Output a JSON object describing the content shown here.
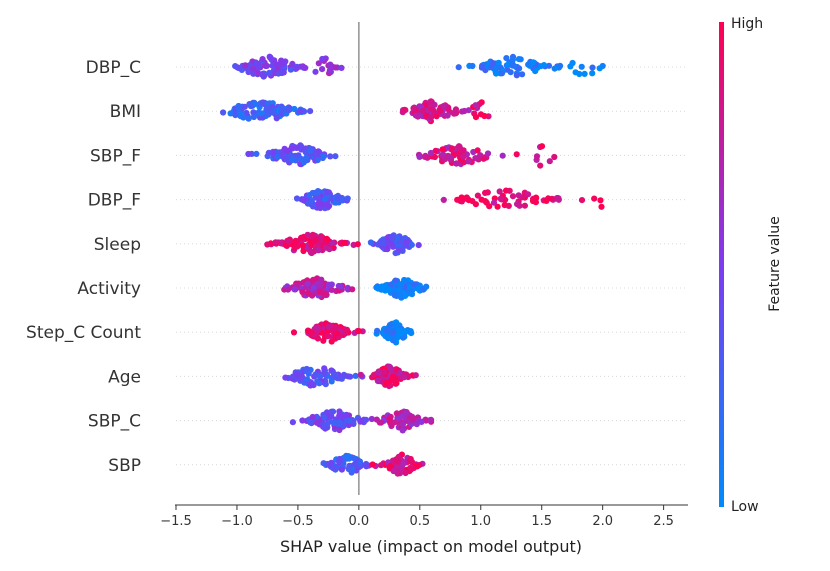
{
  "chart_data": {
    "type": "scatter",
    "subtype": "shap-beeswarm",
    "xlabel": "SHAP value (impact on model output)",
    "xlim": [
      -1.5,
      2.7
    ],
    "xticks": [
      "−1.5",
      "−1.0",
      "−0.5",
      "0.0",
      "0.5",
      "1.0",
      "1.5",
      "2.0",
      "2.5"
    ],
    "xtick_values": [
      -1.5,
      -1.0,
      -0.5,
      0.0,
      0.5,
      1.0,
      1.5,
      2.0,
      2.5
    ],
    "grid": false,
    "colorbar": {
      "title": "Feature value",
      "high_label": "High",
      "low_label": "Low",
      "high_color": "#ff0052",
      "low_color": "#008bfb",
      "placement": "right"
    },
    "features": [
      {
        "name": "DBP_C",
        "clusters": [
          {
            "center": -0.75,
            "spread": 0.28,
            "count": 90,
            "value": 0.45
          },
          {
            "center": -0.3,
            "spread": 0.12,
            "count": 15,
            "value": 0.6
          },
          {
            "center": 1.25,
            "spread": 0.3,
            "count": 70,
            "value": 0.12
          },
          {
            "center": 1.9,
            "spread": 0.25,
            "count": 12,
            "value": 0.05
          }
        ]
      },
      {
        "name": "BMI",
        "clusters": [
          {
            "center": -0.8,
            "spread": 0.32,
            "count": 95,
            "value": 0.25
          },
          {
            "center": 0.6,
            "spread": 0.22,
            "count": 80,
            "value": 0.78
          },
          {
            "center": 1.0,
            "spread": 0.12,
            "count": 10,
            "value": 0.85
          }
        ]
      },
      {
        "name": "SBP_F",
        "clusters": [
          {
            "center": -0.5,
            "spread": 0.28,
            "count": 100,
            "value": 0.35
          },
          {
            "center": 0.8,
            "spread": 0.3,
            "count": 75,
            "value": 0.82
          },
          {
            "center": 1.5,
            "spread": 0.15,
            "count": 8,
            "value": 0.9
          }
        ]
      },
      {
        "name": "DBP_F",
        "clusters": [
          {
            "center": -0.3,
            "spread": 0.18,
            "count": 90,
            "value": 0.35
          },
          {
            "center": 1.2,
            "spread": 0.4,
            "count": 55,
            "value": 0.9
          },
          {
            "center": 2.0,
            "spread": 0.12,
            "count": 4,
            "value": 0.95
          }
        ]
      },
      {
        "name": "Sleep",
        "clusters": [
          {
            "center": -0.4,
            "spread": 0.3,
            "count": 95,
            "value": 0.85
          },
          {
            "center": 0.3,
            "spread": 0.15,
            "count": 70,
            "value": 0.35
          }
        ]
      },
      {
        "name": "Activity",
        "clusters": [
          {
            "center": -0.35,
            "spread": 0.25,
            "count": 75,
            "value": 0.7
          },
          {
            "center": 0.35,
            "spread": 0.18,
            "count": 95,
            "value": 0.08
          }
        ]
      },
      {
        "name": "Step_C Count",
        "clusters": [
          {
            "center": -0.25,
            "spread": 0.18,
            "count": 80,
            "value": 0.92
          },
          {
            "center": 0.3,
            "spread": 0.12,
            "count": 80,
            "value": 0.05
          }
        ]
      },
      {
        "name": "Age",
        "clusters": [
          {
            "center": -0.35,
            "spread": 0.25,
            "count": 70,
            "value": 0.35
          },
          {
            "center": 0.25,
            "spread": 0.15,
            "count": 95,
            "value": 0.88
          }
        ]
      },
      {
        "name": "SBP_C",
        "clusters": [
          {
            "center": -0.2,
            "spread": 0.25,
            "count": 90,
            "value": 0.42
          },
          {
            "center": 0.35,
            "spread": 0.2,
            "count": 60,
            "value": 0.7
          }
        ]
      },
      {
        "name": "SBP",
        "clusters": [
          {
            "center": -0.1,
            "spread": 0.15,
            "count": 70,
            "value": 0.3
          },
          {
            "center": 0.35,
            "spread": 0.15,
            "count": 60,
            "value": 0.85
          }
        ]
      }
    ]
  }
}
